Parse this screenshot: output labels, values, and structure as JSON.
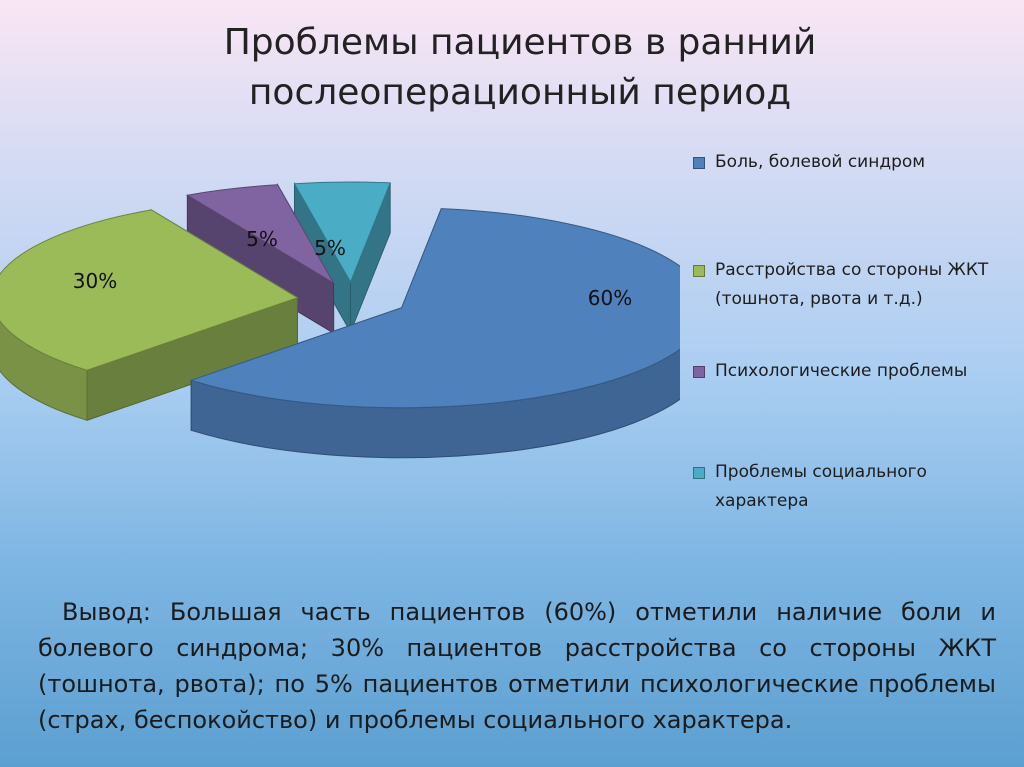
{
  "slide": {
    "title_line1": "Проблемы пациентов в ранний",
    "title_line2": "послеоперационный период",
    "conclusion": "Вывод: Большая часть пациентов (60%) отметили наличие боли и болевого синдрома; 30% пациентов расстройства со стороны ЖКТ (тошнота, рвота); по 5% пациентов отметили психологические проблемы (страх, беспокойство) и проблемы социального характера."
  },
  "chart_data": {
    "type": "pie",
    "style": "3d-exploded",
    "legend_position": "right",
    "slices": [
      {
        "label": "Боль, болевой синдром",
        "value": 60,
        "data_label": "60%",
        "color": "#4f81bd"
      },
      {
        "label": "Расстройства со стороны ЖКТ (тошнота, рвота и т.д.)",
        "value": 30,
        "data_label": "30%",
        "color": "#9bbb59"
      },
      {
        "label": "Психологические проблемы",
        "value": 5,
        "data_label": "5%",
        "color": "#8064a2"
      },
      {
        "label": "Проблемы социального характера",
        "value": 5,
        "data_label": "5%",
        "color": "#4bacc6"
      }
    ]
  }
}
